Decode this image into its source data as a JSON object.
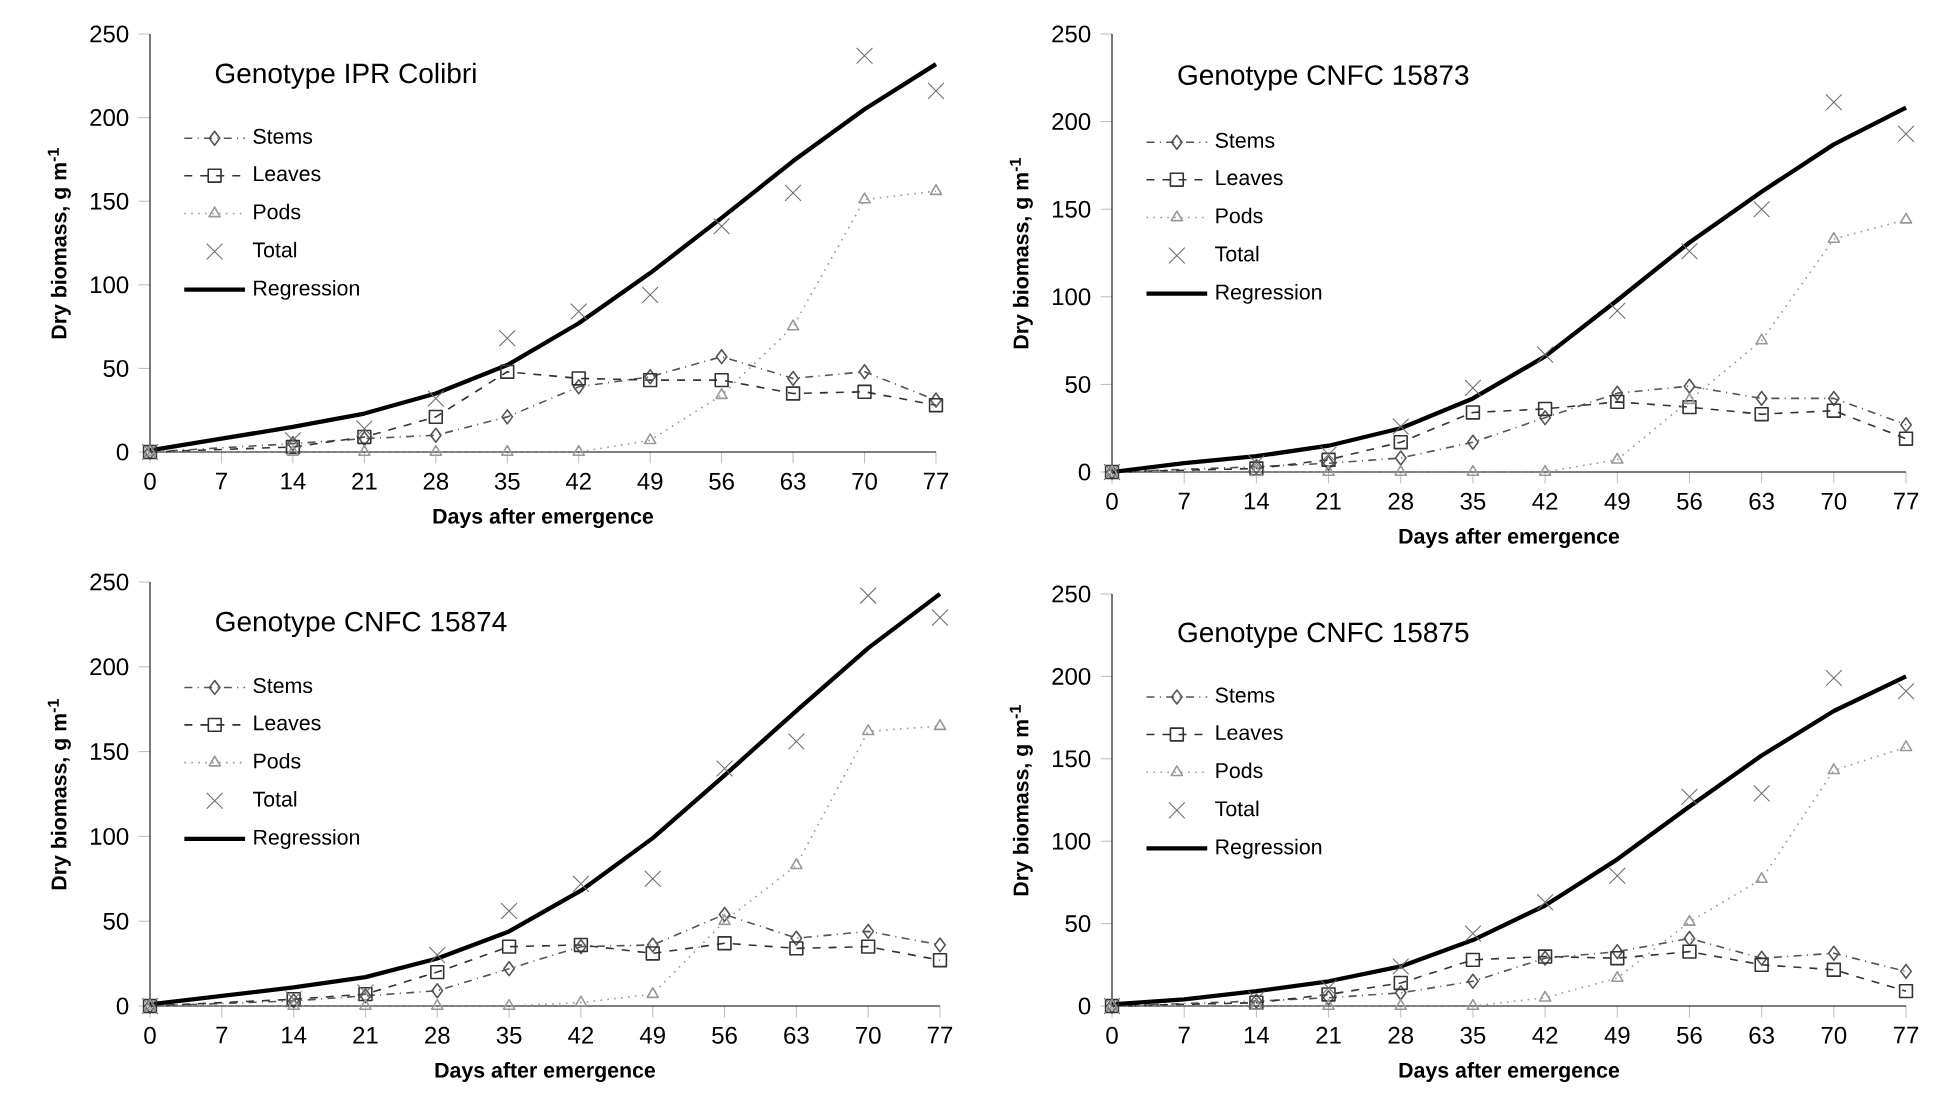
{
  "chart_data": [
    {
      "type": "line",
      "title": "Genotype IPR Colibri",
      "xlabel": "Days after emergence",
      "ylabel": "Dry biomass, g m$^{-1}$",
      "xlim": [
        0,
        77
      ],
      "xticks": [
        0,
        7,
        14,
        21,
        28,
        35,
        42,
        49,
        56,
        63,
        70,
        77
      ],
      "ylim": [
        0,
        250
      ],
      "yticks": [
        0,
        50,
        100,
        150,
        200,
        250
      ],
      "legend": "top left",
      "grid": false,
      "x": [
        0,
        14,
        21,
        28,
        35,
        42,
        49,
        56,
        63,
        70,
        77
      ],
      "series": [
        {
          "name": "Stems",
          "type": "line",
          "color": "#555555",
          "marker": "diamond",
          "line_style": "dashdot",
          "values": [
            0,
            5,
            8,
            10,
            21,
            39,
            45,
            57,
            44,
            48,
            31
          ]
        },
        {
          "name": "Leaves",
          "type": "line",
          "color": "#333333",
          "marker": "square",
          "line_style": "dashed",
          "values": [
            0,
            3,
            9,
            21,
            48,
            44,
            43,
            43,
            35,
            36,
            28
          ]
        },
        {
          "name": "Pods",
          "type": "line",
          "color": "#999999",
          "marker": "triangle",
          "line_style": "dotted",
          "values": [
            0,
            0,
            0,
            0,
            0,
            0,
            7,
            34,
            75,
            151,
            156
          ]
        },
        {
          "name": "Total",
          "type": "scatter",
          "color": "#6e6e6e",
          "marker": "cross",
          "values": [
            0,
            7,
            14,
            32,
            68,
            84,
            94,
            135,
            155,
            237,
            216
          ]
        },
        {
          "name": "Regression",
          "type": "line",
          "color": "#000000",
          "marker": "none",
          "line_style": "solid",
          "x": [
            0,
            7,
            14,
            21,
            28,
            35,
            42,
            49,
            56,
            63,
            70,
            77
          ],
          "values": [
            1,
            8,
            15,
            23,
            35,
            52,
            77,
            107,
            140,
            174,
            205,
            232
          ]
        }
      ]
    },
    {
      "type": "line",
      "title": "Genotype CNFC 15873",
      "xlabel": "Days after emergence",
      "ylabel": "Dry biomass, g m$^{-1}$",
      "xlim": [
        0,
        77
      ],
      "xticks": [
        0,
        7,
        14,
        21,
        28,
        35,
        42,
        49,
        56,
        63,
        70,
        77
      ],
      "ylim": [
        0,
        250
      ],
      "yticks": [
        0,
        50,
        100,
        150,
        200,
        250
      ],
      "legend": "top left",
      "grid": false,
      "x": [
        0,
        14,
        21,
        28,
        35,
        42,
        49,
        56,
        63,
        70,
        77
      ],
      "series": [
        {
          "name": "Stems",
          "type": "line",
          "color": "#555555",
          "marker": "diamond",
          "line_style": "dashdot",
          "values": [
            0,
            3,
            5,
            8,
            17,
            31,
            45,
            49,
            42,
            42,
            27
          ]
        },
        {
          "name": "Leaves",
          "type": "line",
          "color": "#333333",
          "marker": "square",
          "line_style": "dashed",
          "values": [
            0,
            2,
            7,
            17,
            34,
            36,
            40,
            37,
            33,
            35,
            19
          ]
        },
        {
          "name": "Pods",
          "type": "line",
          "color": "#999999",
          "marker": "triangle",
          "line_style": "dotted",
          "values": [
            0,
            0,
            0,
            0,
            0,
            0,
            7,
            41,
            75,
            133,
            144
          ]
        },
        {
          "name": "Total",
          "type": "scatter",
          "color": "#6e6e6e",
          "marker": "cross",
          "values": [
            0,
            5,
            10,
            26,
            48,
            67,
            92,
            126,
            150,
            211,
            193
          ]
        },
        {
          "name": "Regression",
          "type": "line",
          "color": "#000000",
          "marker": "none",
          "line_style": "solid",
          "x": [
            0,
            7,
            14,
            21,
            28,
            35,
            42,
            49,
            56,
            63,
            70,
            77
          ],
          "values": [
            0,
            5,
            9,
            15,
            25,
            42,
            66,
            98,
            131,
            160,
            187,
            208
          ]
        }
      ]
    },
    {
      "type": "line",
      "title": "Genotype CNFC 15874",
      "xlabel": "Days after emergence",
      "ylabel": "Dry biomass, g m$^{-1}$",
      "xlim": [
        0,
        77
      ],
      "xticks": [
        0,
        7,
        14,
        21,
        28,
        35,
        42,
        49,
        56,
        63,
        70,
        77
      ],
      "ylim": [
        0,
        250
      ],
      "yticks": [
        0,
        50,
        100,
        150,
        200,
        250
      ],
      "legend": "top left",
      "grid": false,
      "x": [
        0,
        14,
        21,
        28,
        35,
        42,
        49,
        56,
        63,
        70,
        77
      ],
      "series": [
        {
          "name": "Stems",
          "type": "line",
          "color": "#555555",
          "marker": "diamond",
          "line_style": "dashdot",
          "values": [
            0,
            3,
            6,
            9,
            22,
            35,
            36,
            54,
            40,
            44,
            36
          ]
        },
        {
          "name": "Leaves",
          "type": "line",
          "color": "#333333",
          "marker": "square",
          "line_style": "dashed",
          "values": [
            0,
            4,
            7,
            20,
            35,
            36,
            31,
            37,
            34,
            35,
            27
          ]
        },
        {
          "name": "Pods",
          "type": "line",
          "color": "#999999",
          "marker": "triangle",
          "line_style": "dotted",
          "values": [
            0,
            0,
            0,
            0,
            0,
            2,
            7,
            50,
            83,
            162,
            165
          ]
        },
        {
          "name": "Total",
          "type": "scatter",
          "color": "#6e6e6e",
          "marker": "cross",
          "values": [
            0,
            4,
            8,
            30,
            56,
            72,
            75,
            140,
            156,
            242,
            229
          ]
        },
        {
          "name": "Regression",
          "type": "line",
          "color": "#000000",
          "marker": "none",
          "line_style": "solid",
          "x": [
            0,
            7,
            14,
            21,
            28,
            35,
            42,
            49,
            56,
            63,
            70,
            77
          ],
          "values": [
            1,
            6,
            11,
            17,
            28,
            44,
            68,
            99,
            136,
            174,
            211,
            243
          ]
        }
      ]
    },
    {
      "type": "line",
      "title": "Genotype CNFC 15875",
      "xlabel": "Days after emergence",
      "ylabel": "Dry biomass, g m$^{-1}$",
      "xlim": [
        0,
        77
      ],
      "xticks": [
        0,
        7,
        14,
        21,
        28,
        35,
        42,
        49,
        56,
        63,
        70,
        77
      ],
      "ylim": [
        0,
        250
      ],
      "yticks": [
        0,
        50,
        100,
        150,
        200,
        250
      ],
      "legend": "top left",
      "grid": false,
      "x": [
        0,
        14,
        21,
        28,
        35,
        42,
        49,
        56,
        63,
        70,
        77
      ],
      "series": [
        {
          "name": "Stems",
          "type": "line",
          "color": "#555555",
          "marker": "diamond",
          "line_style": "dashdot",
          "values": [
            0,
            3,
            5,
            8,
            15,
            29,
            33,
            41,
            29,
            32,
            21
          ]
        },
        {
          "name": "Leaves",
          "type": "line",
          "color": "#333333",
          "marker": "square",
          "line_style": "dashed",
          "values": [
            0,
            2,
            7,
            14,
            28,
            30,
            29,
            33,
            25,
            22,
            9
          ]
        },
        {
          "name": "Pods",
          "type": "line",
          "color": "#999999",
          "marker": "triangle",
          "line_style": "dotted",
          "values": [
            0,
            0,
            0,
            0,
            0,
            5,
            17,
            51,
            77,
            143,
            157
          ]
        },
        {
          "name": "Total",
          "type": "scatter",
          "color": "#6e6e6e",
          "marker": "cross",
          "values": [
            0,
            4,
            11,
            24,
            44,
            63,
            79,
            127,
            129,
            199,
            191
          ]
        },
        {
          "name": "Regression",
          "type": "line",
          "color": "#000000",
          "marker": "none",
          "line_style": "solid",
          "x": [
            0,
            7,
            14,
            21,
            28,
            35,
            42,
            49,
            56,
            63,
            70,
            77
          ],
          "values": [
            1,
            4,
            9,
            15,
            24,
            40,
            61,
            89,
            121,
            152,
            179,
            200
          ]
        }
      ]
    }
  ]
}
